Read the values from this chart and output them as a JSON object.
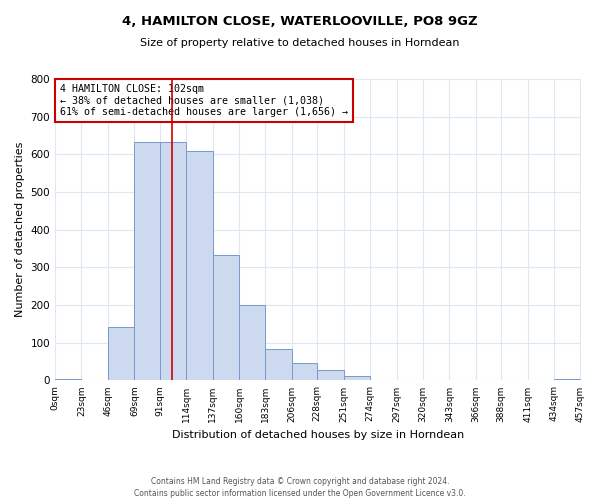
{
  "title": "4, HAMILTON CLOSE, WATERLOOVILLE, PO8 9GZ",
  "subtitle": "Size of property relative to detached houses in Horndean",
  "xlabel": "Distribution of detached houses by size in Horndean",
  "ylabel": "Number of detached properties",
  "bin_edges": [
    0,
    23,
    46,
    69,
    91,
    114,
    137,
    160,
    183,
    206,
    228,
    251,
    274,
    297,
    320,
    343,
    366,
    388,
    411,
    434,
    457
  ],
  "bin_counts": [
    3,
    0,
    143,
    634,
    633,
    608,
    332,
    200,
    83,
    45,
    27,
    12,
    0,
    0,
    0,
    0,
    0,
    0,
    0,
    5
  ],
  "bar_facecolor": "#ccd9ee",
  "bar_edgecolor": "#7799cc",
  "vline_x": 102,
  "vline_color": "#cc0000",
  "annotation_title": "4 HAMILTON CLOSE: 102sqm",
  "annotation_line1": "← 38% of detached houses are smaller (1,038)",
  "annotation_line2": "61% of semi-detached houses are larger (1,656) →",
  "annotation_box_color": "#cc0000",
  "ylim": [
    0,
    800
  ],
  "yticks": [
    0,
    100,
    200,
    300,
    400,
    500,
    600,
    700,
    800
  ],
  "tick_labels": [
    "0sqm",
    "23sqm",
    "46sqm",
    "69sqm",
    "91sqm",
    "114sqm",
    "137sqm",
    "160sqm",
    "183sqm",
    "206sqm",
    "228sqm",
    "251sqm",
    "274sqm",
    "297sqm",
    "320sqm",
    "343sqm",
    "366sqm",
    "388sqm",
    "411sqm",
    "434sqm",
    "457sqm"
  ],
  "footer_line1": "Contains HM Land Registry data © Crown copyright and database right 2024.",
  "footer_line2": "Contains public sector information licensed under the Open Government Licence v3.0.",
  "bg_color": "#ffffff",
  "plot_bg_color": "#ffffff",
  "grid_color": "#dde8f5"
}
